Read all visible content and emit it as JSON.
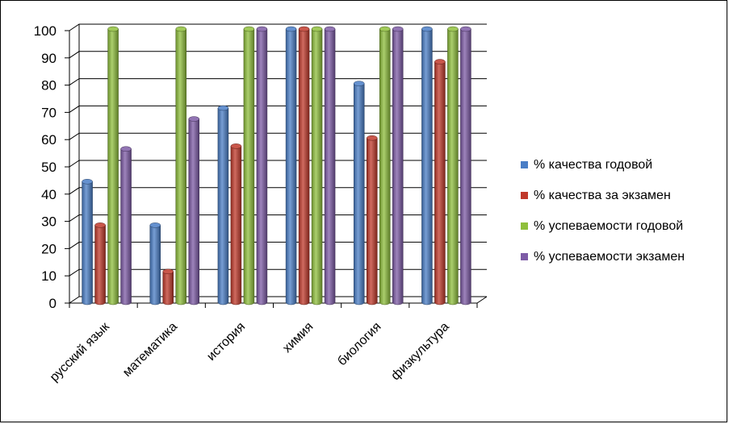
{
  "chart_data": {
    "type": "bar",
    "categories": [
      "русский язык",
      "математика",
      "история",
      "химия",
      "биология",
      "физкультура"
    ],
    "series": [
      {
        "name": "% качества годовой",
        "color": "#4a7ec6",
        "values": [
          44,
          28,
          71,
          100,
          80,
          100
        ]
      },
      {
        "name": "% качества за экзамен",
        "color": "#c0392b",
        "values": [
          28,
          11,
          57,
          100,
          60,
          88
        ]
      },
      {
        "name": "% успеваемости годовой",
        "color": "#8fbf3c",
        "values": [
          100,
          100,
          100,
          100,
          100,
          100
        ]
      },
      {
        "name": "% успеваемости экзамен",
        "color": "#7d5ba6",
        "values": [
          56,
          67,
          100,
          100,
          100,
          100
        ]
      }
    ],
    "ylim": [
      0,
      100
    ],
    "yticks": [
      0,
      10,
      20,
      30,
      40,
      50,
      60,
      70,
      80,
      90,
      100
    ],
    "grid": true,
    "legend_position": "right",
    "three_d": true
  }
}
